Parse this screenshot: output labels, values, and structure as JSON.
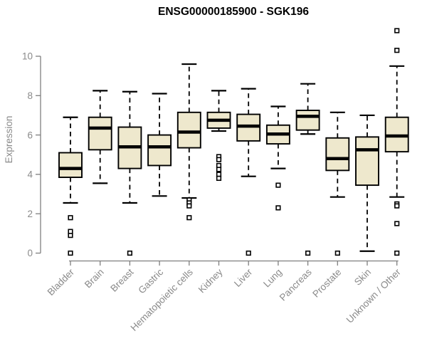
{
  "chart_data": {
    "type": "boxplot",
    "title": "ENSG00000185900 - SGK196",
    "ylabel": "Expression",
    "xlabel": "",
    "yticks": [
      0,
      2,
      4,
      6,
      8,
      10
    ],
    "ylim": [
      0,
      11.5
    ],
    "grid": false,
    "legend": "none",
    "categories": [
      "Bladder",
      "Brain",
      "Breast",
      "Gastric",
      "Hematopoietic cells",
      "Kidney",
      "Liver",
      "Lung",
      "Pancreas",
      "Prostate",
      "Skin",
      "Unknown / Other"
    ],
    "series": [
      {
        "name": "Bladder",
        "whisker_low": 2.55,
        "q1": 3.85,
        "median": 4.3,
        "q3": 5.1,
        "whisker_high": 6.9,
        "outliers": [
          1.8,
          1.1,
          0.9,
          0
        ]
      },
      {
        "name": "Brain",
        "whisker_low": 3.55,
        "q1": 5.25,
        "median": 6.35,
        "q3": 6.9,
        "whisker_high": 8.25,
        "outliers": []
      },
      {
        "name": "Breast",
        "whisker_low": 2.55,
        "q1": 4.3,
        "median": 5.4,
        "q3": 6.4,
        "whisker_high": 8.2,
        "outliers": [
          0
        ]
      },
      {
        "name": "Gastric",
        "whisker_low": 2.9,
        "q1": 4.45,
        "median": 5.4,
        "q3": 6.0,
        "whisker_high": 8.1,
        "outliers": []
      },
      {
        "name": "Hematopoietic cells",
        "whisker_low": 2.8,
        "q1": 5.35,
        "median": 6.15,
        "q3": 7.15,
        "whisker_high": 9.6,
        "outliers": [
          2.7,
          2.55,
          2.4,
          1.8
        ]
      },
      {
        "name": "Kidney",
        "whisker_low": 6.2,
        "q1": 6.35,
        "median": 6.75,
        "q3": 7.15,
        "whisker_high": 8.25,
        "outliers": [
          4.9,
          4.75,
          4.45,
          4.25,
          4.0,
          3.8
        ]
      },
      {
        "name": "Liver",
        "whisker_low": 3.9,
        "q1": 5.7,
        "median": 6.45,
        "q3": 7.05,
        "whisker_high": 8.35,
        "outliers": [
          0
        ]
      },
      {
        "name": "Lung",
        "whisker_low": 4.3,
        "q1": 5.55,
        "median": 6.05,
        "q3": 6.5,
        "whisker_high": 7.45,
        "outliers": [
          3.45,
          2.3
        ]
      },
      {
        "name": "Pancreas",
        "whisker_low": 6.05,
        "q1": 6.25,
        "median": 6.95,
        "q3": 7.25,
        "whisker_high": 8.6,
        "outliers": [
          0
        ]
      },
      {
        "name": "Prostate",
        "whisker_low": 2.85,
        "q1": 4.2,
        "median": 4.8,
        "q3": 5.85,
        "whisker_high": 7.15,
        "outliers": [
          0
        ]
      },
      {
        "name": "Skin",
        "whisker_low": 0.1,
        "q1": 3.45,
        "median": 5.25,
        "q3": 5.9,
        "whisker_high": 7.0,
        "outliers": []
      },
      {
        "name": "Unknown / Other",
        "whisker_low": 2.85,
        "q1": 5.15,
        "median": 5.95,
        "q3": 6.9,
        "whisker_high": 9.5,
        "outliers": [
          11.3,
          10.3,
          2.5,
          2.4,
          1.5,
          0
        ]
      }
    ],
    "colors": {
      "box_fill": "#EEE8CD",
      "box_stroke": "#000000",
      "median": "#000000",
      "whisker": "#000000",
      "outlier_fill": "#FFFFFF",
      "outlier_stroke": "#000000",
      "axis_line": "#7F7F7F",
      "tick_label": "#8A8A8A",
      "title": "#000000",
      "background": "#FFFFFF"
    }
  }
}
